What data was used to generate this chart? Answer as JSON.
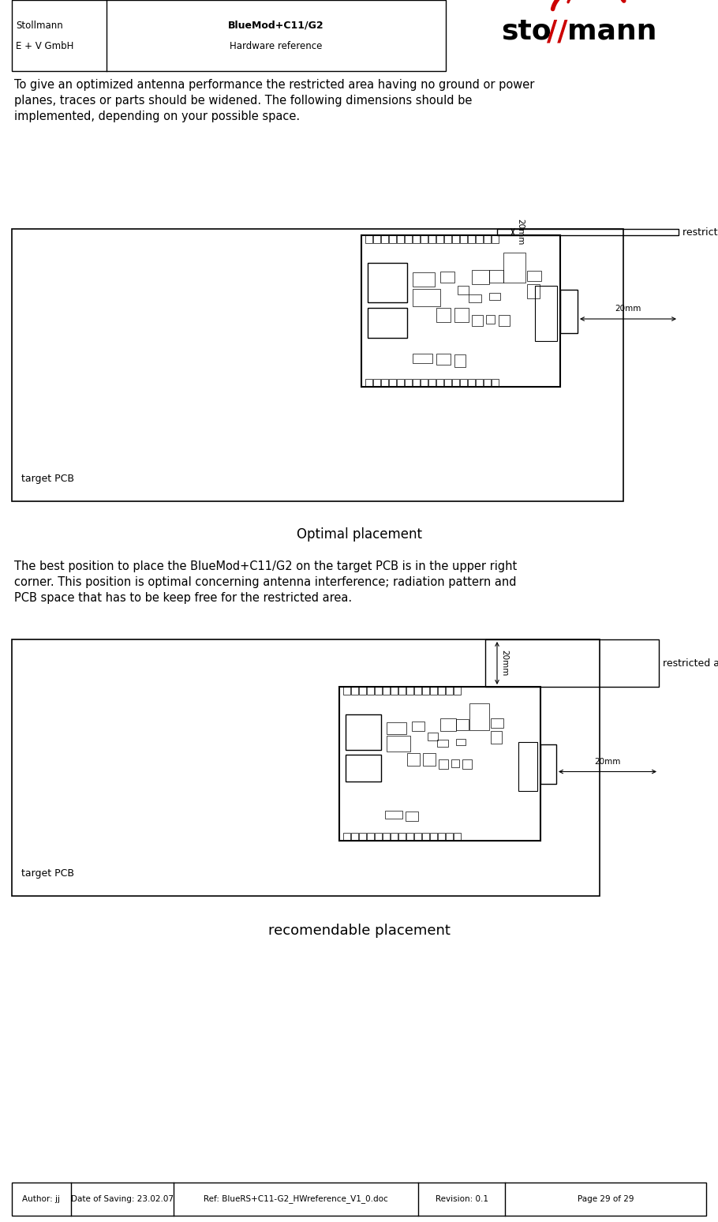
{
  "header_left_top": "Stollmann",
  "header_left_bottom": "E + V GmbH",
  "header_right_top": "BlueMod+C11/G2",
  "header_right_bottom": "Hardware reference",
  "body_text1": "To give an optimized antenna performance the restricted area having no ground or power\nplanes, traces or parts should be widened. The following dimensions should be\nimplemented, depending on your possible space.",
  "section_title": "Optimal placement",
  "body_text2": "The best position to place the BlueMod+C11/G2 on the target PCB is in the upper right\ncorner. This position is optimal concerning antenna interference; radiation pattern and\nPCB space that has to be keep free for the restricted area.",
  "caption1": "recomendable placement",
  "label_restricted": "restricted area",
  "label_20mm_v": "20mm",
  "label_20mm_h": "20mm",
  "label_target_pcb": "target PCB",
  "footer_author": "Author: jj",
  "footer_date": "Date of Saving: 23.02.07",
  "footer_ref": "Ref: BlueRS+C11-G2_HWreference_V1_0.doc",
  "footer_revision": "Revision: 0.1",
  "footer_page": "Page 29 of 29",
  "bg_color": "#ffffff"
}
